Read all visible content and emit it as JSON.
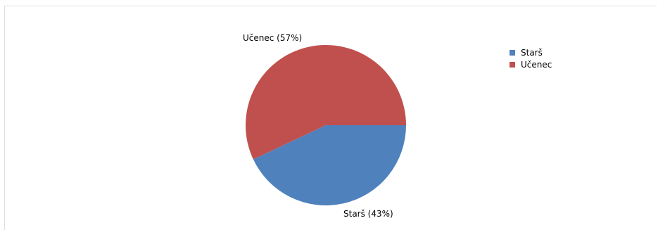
{
  "chart_data": {
    "type": "pie",
    "categories": [
      "Starš",
      "Učenec"
    ],
    "values": [
      43,
      57
    ],
    "data_labels": [
      "Starš (43%)",
      "Učenec (57%)"
    ],
    "colors": [
      "#4f81bd",
      "#c0504d"
    ],
    "legend": {
      "position": "right",
      "entries": [
        "Starš",
        "Učenec"
      ]
    }
  }
}
